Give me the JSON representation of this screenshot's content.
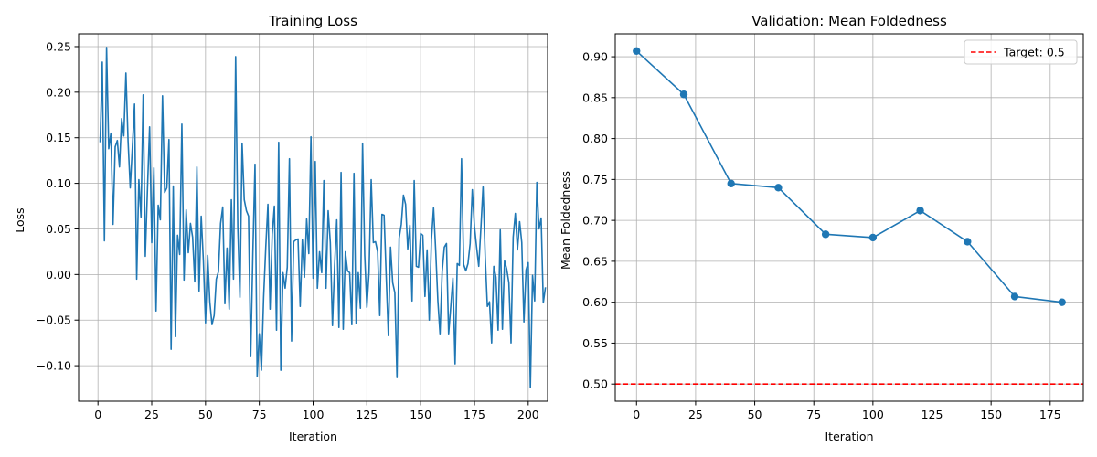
{
  "chart_data": [
    {
      "type": "line",
      "title": "Training Loss",
      "xlabel": "Iteration",
      "ylabel": "Loss",
      "xlim": [
        -9,
        209
      ],
      "ylim": [
        -0.139,
        0.264
      ],
      "xticks": [
        0,
        25,
        50,
        75,
        100,
        125,
        150,
        175,
        200
      ],
      "yticks": [
        -0.1,
        -0.05,
        0.0,
        0.05,
        0.1,
        0.15,
        0.2,
        0.25
      ],
      "ytick_labels": [
        "−0.10",
        "−0.05",
        "0.00",
        "0.05",
        "0.10",
        "0.15",
        "0.20",
        "0.25"
      ],
      "grid": true,
      "color": "#1f77b4",
      "x_start": 1,
      "x_step": 1,
      "values": [
        0.145,
        0.233,
        0.037,
        0.249,
        0.138,
        0.155,
        0.055,
        0.14,
        0.147,
        0.118,
        0.171,
        0.152,
        0.221,
        0.146,
        0.095,
        0.14,
        0.187,
        -0.005,
        0.104,
        0.063,
        0.197,
        0.02,
        0.093,
        0.162,
        0.035,
        0.117,
        -0.04,
        0.076,
        0.06,
        0.196,
        0.09,
        0.095,
        0.148,
        -0.082,
        0.097,
        -0.068,
        0.043,
        0.022,
        0.165,
        -0.006,
        0.071,
        0.024,
        0.056,
        0.041,
        -0.008,
        0.118,
        -0.018,
        0.064,
        0.015,
        -0.053,
        0.021,
        -0.03,
        -0.055,
        -0.045,
        -0.005,
        0.003,
        0.056,
        0.074,
        -0.032,
        0.029,
        -0.038,
        0.082,
        -0.005,
        0.239,
        0.052,
        -0.025,
        0.144,
        0.082,
        0.07,
        0.064,
        -0.09,
        0.023,
        0.121,
        -0.112,
        -0.065,
        -0.105,
        -0.025,
        0.03,
        0.077,
        -0.038,
        0.044,
        0.075,
        -0.061,
        0.145,
        -0.105,
        0.002,
        -0.015,
        0.008,
        0.127,
        -0.073,
        0.036,
        0.038,
        0.039,
        -0.035,
        0.038,
        -0.003,
        0.061,
        0.023,
        0.151,
        -0.004,
        0.124,
        -0.015,
        0.025,
        0.002,
        0.103,
        -0.015,
        0.07,
        0.035,
        -0.056,
        0.01,
        0.06,
        -0.058,
        0.112,
        -0.06,
        0.025,
        0.004,
        0.002,
        -0.055,
        0.111,
        -0.054,
        0.002,
        -0.037,
        0.144,
        0.021,
        -0.036,
        0.002,
        0.104,
        0.035,
        0.036,
        0.025,
        -0.045,
        0.066,
        0.065,
        -0.003,
        -0.067,
        0.03,
        -0.009,
        -0.02,
        -0.113,
        0.04,
        0.055,
        0.087,
        0.077,
        0.028,
        0.054,
        -0.029,
        0.103,
        0.009,
        0.008,
        0.045,
        0.043,
        -0.024,
        0.027,
        -0.05,
        0.038,
        0.073,
        0.026,
        -0.029,
        -0.065,
        0.003,
        0.03,
        0.034,
        -0.065,
        -0.035,
        -0.004,
        -0.098,
        0.012,
        0.01,
        0.127,
        0.011,
        0.004,
        0.012,
        0.034,
        0.093,
        0.053,
        0.03,
        0.009,
        0.051,
        0.096,
        0.02,
        -0.035,
        -0.03,
        -0.075,
        0.009,
        -0.003,
        -0.061,
        0.049,
        -0.06,
        0.015,
        0.006,
        -0.009,
        -0.075,
        0.041,
        0.067,
        0.027,
        0.058,
        0.035,
        -0.052,
        0.005,
        0.013,
        -0.124,
        -0.001,
        -0.029,
        0.101,
        0.05,
        0.062,
        -0.031,
        -0.014
      ]
    },
    {
      "type": "line",
      "title": "Validation: Mean Foldedness",
      "xlabel": "Iteration",
      "ylabel": "Mean Foldedness",
      "xlim": [
        -9,
        189
      ],
      "ylim": [
        0.479,
        0.928
      ],
      "xticks": [
        0,
        25,
        50,
        75,
        100,
        125,
        150,
        175
      ],
      "yticks": [
        0.5,
        0.55,
        0.6,
        0.65,
        0.7,
        0.75,
        0.8,
        0.85,
        0.9
      ],
      "ytick_labels": [
        "0.50",
        "0.55",
        "0.60",
        "0.65",
        "0.70",
        "0.75",
        "0.80",
        "0.85",
        "0.90"
      ],
      "grid": true,
      "color": "#1f77b4",
      "markers": true,
      "x": [
        0,
        20,
        40,
        60,
        80,
        100,
        120,
        140,
        160,
        180
      ],
      "y": [
        0.907,
        0.854,
        0.745,
        0.74,
        0.683,
        0.679,
        0.712,
        0.674,
        0.607,
        0.6
      ],
      "target": {
        "label": "Target: 0.5",
        "value": 0.5,
        "color": "#ff0000"
      },
      "legend_position": "top-right"
    }
  ]
}
